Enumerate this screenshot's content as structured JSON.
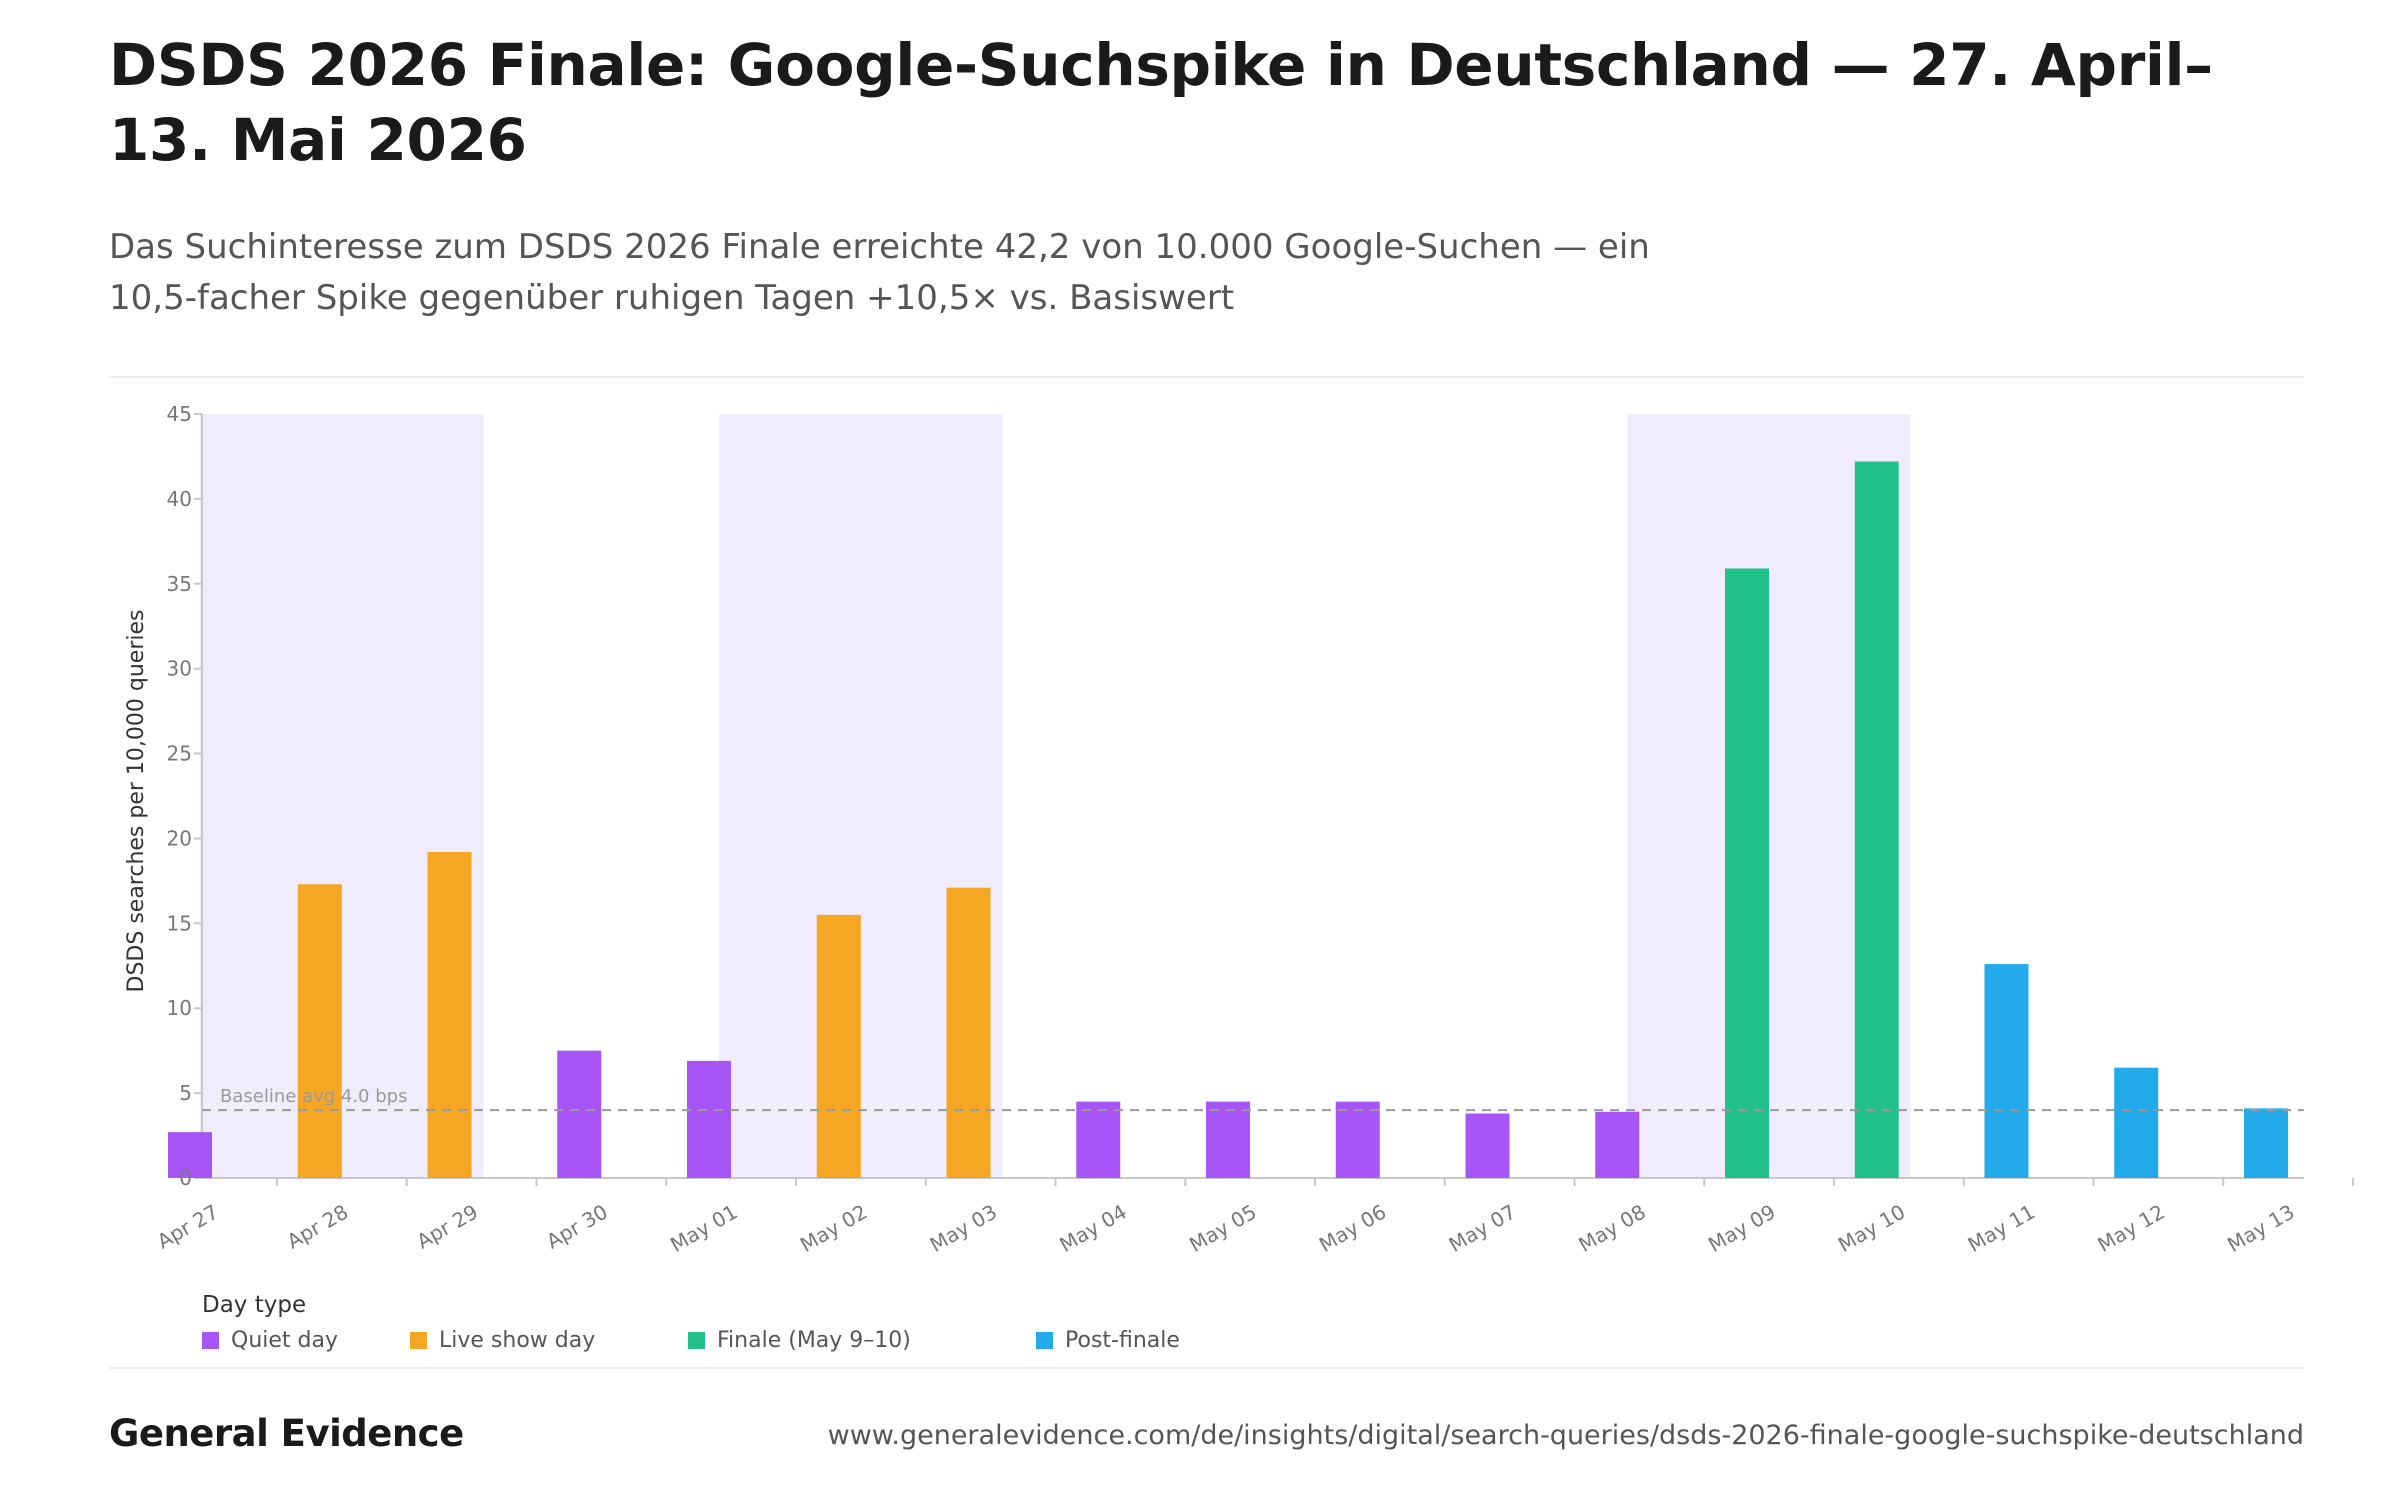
{
  "title": "DSDS 2026 Finale: Google-Suchspike in Deutschland — 27. April–13. Mai 2026",
  "subtitle": "Das Suchinteresse zum DSDS 2026 Finale erreichte 42,2 von 10.000 Google-Suchen — ein 10,5-facher Spike gegenüber ruhigen Tagen +10,5× vs. Basiswert",
  "legend": {
    "title": "Day type",
    "items": [
      {
        "label": "Quiet day",
        "color": "#a855f7"
      },
      {
        "label": "Live show day",
        "color": "#f5a623"
      },
      {
        "label": "Finale (May 9–10)",
        "color": "#22c08a"
      },
      {
        "label": "Post-finale",
        "color": "#22aaea"
      }
    ]
  },
  "footer": {
    "brand": "General Evidence",
    "url": "www.generalevidence.com/de/insights/digital/search-queries/dsds-2026-finale-google-suchspike-deutschland"
  },
  "chart_data": {
    "type": "bar",
    "ylabel": "DSDS searches per 10,000 queries",
    "xlabel": "",
    "ylim": [
      0,
      45
    ],
    "yticks": [
      0,
      5,
      10,
      15,
      20,
      25,
      30,
      35,
      40,
      45
    ],
    "categories": [
      "Apr 27",
      "Apr 28",
      "Apr 29",
      "Apr 30",
      "May 01",
      "May 02",
      "May 03",
      "May 04",
      "May 05",
      "May 06",
      "May 07",
      "May 08",
      "May 09",
      "May 10",
      "May 11",
      "May 12",
      "May 13"
    ],
    "values": [
      2.7,
      17.3,
      19.2,
      7.5,
      6.9,
      15.5,
      17.1,
      4.5,
      4.5,
      4.5,
      3.8,
      3.9,
      35.9,
      42.2,
      12.6,
      6.5,
      4.1
    ],
    "day_types": [
      "Quiet day",
      "Live show day",
      "Live show day",
      "Quiet day",
      "Quiet day",
      "Live show day",
      "Live show day",
      "Quiet day",
      "Quiet day",
      "Quiet day",
      "Quiet day",
      "Quiet day",
      "Finale (May 9–10)",
      "Finale (May 9–10)",
      "Post-finale",
      "Post-finale",
      "Post-finale"
    ],
    "highlighted_spans": [
      [
        "Apr 27",
        "Apr 29"
      ],
      [
        "May 01",
        "May 03"
      ],
      [
        "May 08",
        "May 10"
      ]
    ],
    "highlight_color": "#f0ecfb",
    "baseline": {
      "value": 4.0,
      "label": "Baseline avg 4.0 bps"
    },
    "grid": false,
    "legend_position": "bottom-left"
  }
}
